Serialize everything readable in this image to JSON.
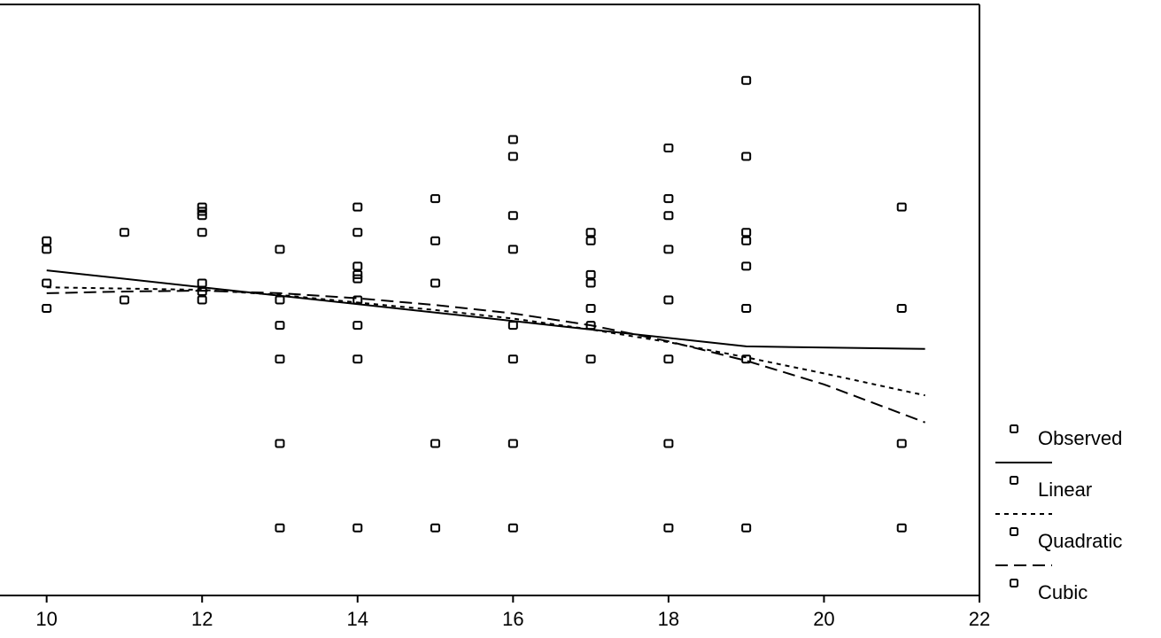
{
  "chart_data": {
    "type": "scatter",
    "title": "",
    "xlabel": "",
    "ylabel": "",
    "xlim": [
      9.4,
      22
    ],
    "ylim": [
      0,
      7
    ],
    "x_ticks": [
      "10",
      "12",
      "14",
      "16",
      "18",
      "20",
      "22"
    ],
    "grid": false,
    "legend_position": "right",
    "legend": [
      {
        "label": "Observed",
        "style": "marker"
      },
      {
        "label": "Linear",
        "style": "solid"
      },
      {
        "label": "Quadratic",
        "style": "dotted"
      },
      {
        "label": "Cubic",
        "style": "dashed"
      }
    ],
    "series": [
      {
        "name": "Observed",
        "points": [
          [
            10,
            4.2
          ],
          [
            10,
            4.1
          ],
          [
            10,
            3.7
          ],
          [
            10,
            3.4
          ],
          [
            11,
            4.3
          ],
          [
            11,
            3.5
          ],
          [
            12,
            4.6
          ],
          [
            12,
            4.55
          ],
          [
            12,
            4.5
          ],
          [
            12,
            4.3
          ],
          [
            12,
            3.7
          ],
          [
            12,
            3.6
          ],
          [
            12,
            3.5
          ],
          [
            13,
            4.1
          ],
          [
            13,
            3.5
          ],
          [
            13,
            3.2
          ],
          [
            13,
            2.8
          ],
          [
            13,
            1.8
          ],
          [
            13,
            0.8
          ],
          [
            14,
            4.6
          ],
          [
            14,
            4.3
          ],
          [
            14,
            3.9
          ],
          [
            14,
            3.8
          ],
          [
            14,
            3.75
          ],
          [
            14,
            3.5
          ],
          [
            14,
            3.2
          ],
          [
            14,
            2.8
          ],
          [
            14,
            0.8
          ],
          [
            15,
            4.7
          ],
          [
            15,
            4.2
          ],
          [
            15,
            3.7
          ],
          [
            15,
            1.8
          ],
          [
            15,
            0.8
          ],
          [
            16,
            5.4
          ],
          [
            16,
            5.2
          ],
          [
            16,
            4.5
          ],
          [
            16,
            4.1
          ],
          [
            16,
            3.2
          ],
          [
            16,
            2.8
          ],
          [
            16,
            1.8
          ],
          [
            16,
            0.8
          ],
          [
            17,
            4.3
          ],
          [
            17,
            4.2
          ],
          [
            17,
            3.8
          ],
          [
            17,
            3.7
          ],
          [
            17,
            3.4
          ],
          [
            17,
            3.2
          ],
          [
            17,
            2.8
          ],
          [
            18,
            5.3
          ],
          [
            18,
            4.7
          ],
          [
            18,
            4.5
          ],
          [
            18,
            4.1
          ],
          [
            18,
            3.5
          ],
          [
            18,
            2.8
          ],
          [
            18,
            1.8
          ],
          [
            18,
            0.8
          ],
          [
            19,
            6.1
          ],
          [
            19,
            5.2
          ],
          [
            19,
            4.3
          ],
          [
            19,
            4.2
          ],
          [
            19,
            3.9
          ],
          [
            19,
            3.4
          ],
          [
            19,
            2.8
          ],
          [
            19,
            0.8
          ],
          [
            21,
            4.6
          ],
          [
            21,
            3.4
          ],
          [
            21,
            1.8
          ],
          [
            21,
            0.8
          ]
        ]
      },
      {
        "name": "Linear",
        "points": [
          [
            10,
            3.85
          ],
          [
            13,
            3.55
          ],
          [
            16,
            3.25
          ],
          [
            19,
            2.95
          ],
          [
            21.3,
            2.92
          ]
        ]
      },
      {
        "name": "Quadratic",
        "points": [
          [
            10,
            3.65
          ],
          [
            12,
            3.62
          ],
          [
            13,
            3.56
          ],
          [
            14,
            3.47
          ],
          [
            15,
            3.38
          ],
          [
            16,
            3.28
          ],
          [
            17,
            3.15
          ],
          [
            18,
            3.0
          ],
          [
            19,
            2.82
          ],
          [
            20,
            2.63
          ],
          [
            21.3,
            2.37
          ]
        ]
      },
      {
        "name": "Cubic",
        "points": [
          [
            10,
            3.58
          ],
          [
            11,
            3.6
          ],
          [
            12,
            3.61
          ],
          [
            13,
            3.58
          ],
          [
            14,
            3.52
          ],
          [
            15,
            3.44
          ],
          [
            16,
            3.34
          ],
          [
            17,
            3.2
          ],
          [
            18,
            3.01
          ],
          [
            19,
            2.78
          ],
          [
            20,
            2.5
          ],
          [
            21.3,
            2.05
          ]
        ]
      }
    ]
  }
}
